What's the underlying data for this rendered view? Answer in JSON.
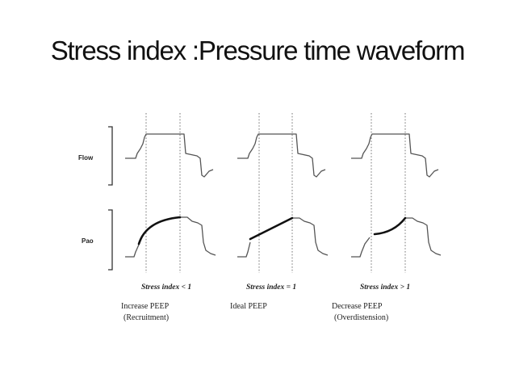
{
  "slide": {
    "title": "Stress index :Pressure time waveform"
  },
  "figure": {
    "row_labels": {
      "flow": "Flow",
      "pressure": "Pao"
    },
    "panels": [
      {
        "stress_label": "Stress index < 1",
        "caption_line1": "Increase PEEP",
        "caption_line2": "(Recruitment)",
        "curve_shape": "concave-down"
      },
      {
        "stress_label": "Stress index = 1",
        "caption_line1": "Ideal PEEP",
        "caption_line2": "",
        "curve_shape": "linear"
      },
      {
        "stress_label": "Stress index > 1",
        "caption_line1": "Decrease PEEP",
        "caption_line2": "(Overdistension)",
        "curve_shape": "concave-up"
      }
    ]
  }
}
